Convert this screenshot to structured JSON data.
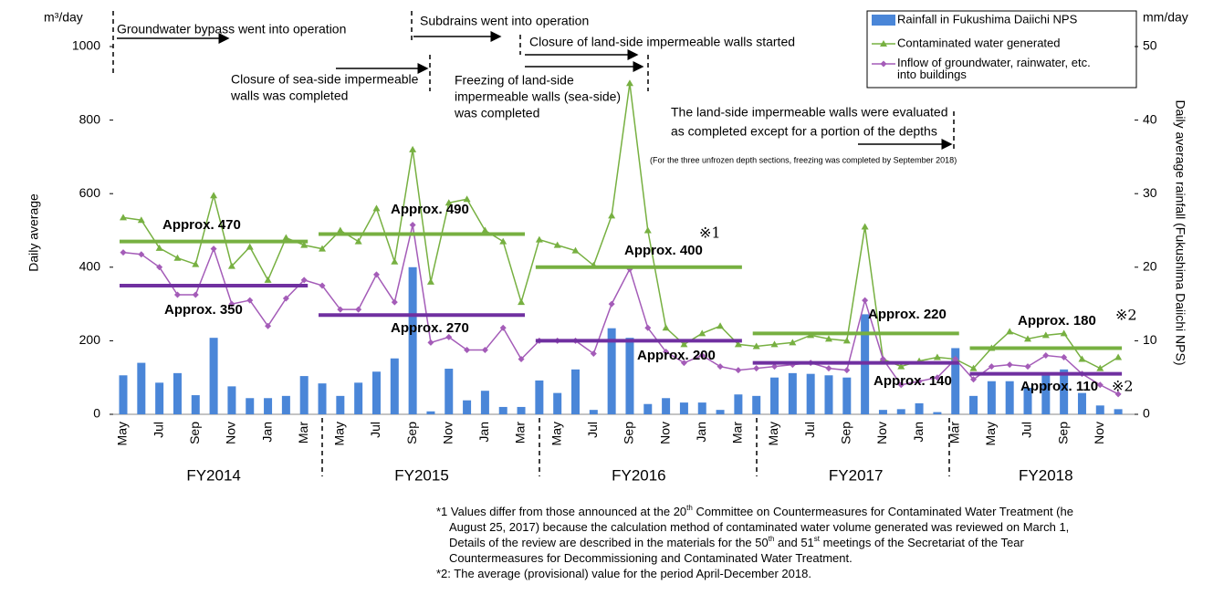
{
  "chart_data": {
    "type": "bar_line",
    "y_unit_label": "m³/day",
    "y_axis_label": "Daily average",
    "y2_unit_label": "mm/day",
    "y2_axis_label": "Daily average rainfall (Fukushima Daiichi NPS)",
    "ylim": [
      0,
      1000
    ],
    "yticks": [
      0,
      200,
      400,
      600,
      800,
      1000
    ],
    "y2lim": [
      0,
      50
    ],
    "y2ticks": [
      0,
      10,
      20,
      30,
      40,
      50
    ],
    "categories": [
      "May",
      null,
      "Jul",
      null,
      "Sep",
      null,
      "Nov",
      null,
      "Jan",
      null,
      "Mar",
      null,
      "May",
      null,
      "Jul",
      null,
      "Sep",
      null,
      "Nov",
      null,
      "Jan",
      null,
      "Mar",
      null,
      "May",
      null,
      "Jul",
      null,
      "Sep",
      null,
      "Nov",
      null,
      "Jan",
      null,
      "Mar",
      null,
      "May",
      null,
      "Jul",
      null,
      "Sep",
      null,
      "Nov",
      null,
      "Jan",
      null,
      "Mar",
      null,
      "May",
      null,
      "Jul",
      null,
      "Sep",
      null,
      "Nov",
      null
    ],
    "fiscal_years": [
      "FY2014",
      "FY2015",
      "FY2016",
      "FY2017",
      "FY2018"
    ],
    "series": [
      {
        "name": "Rainfall in Fukushima Daiichi NPS",
        "kind": "bar",
        "axis": "y2",
        "color": "#4a86d8",
        "values": [
          5.3,
          7.0,
          4.3,
          5.6,
          2.6,
          10.4,
          3.8,
          2.2,
          2.2,
          2.5,
          5.2,
          4.2,
          2.5,
          4.3,
          5.8,
          7.6,
          20,
          0.4,
          6.2,
          1.9,
          3.2,
          1.0,
          1.0,
          4.6,
          2.9,
          6.1,
          0.6,
          11.7,
          10.4,
          1.4,
          2.2,
          1.6,
          1.6,
          0.6,
          2.7,
          2.5,
          5.0,
          5.6,
          5.5,
          5.3,
          5.0,
          13.6,
          0.6,
          0.7,
          1.5,
          0.3,
          9.0,
          2.5,
          4.5,
          4.5,
          3.6,
          5.5,
          6.1,
          2.9,
          1.2,
          0.7
        ]
      },
      {
        "name": "Contaminated water generated",
        "kind": "line",
        "marker": "triangle",
        "color": "#77b041",
        "values": [
          535,
          528,
          452,
          425,
          408,
          595,
          403,
          455,
          365,
          480,
          460,
          450,
          500,
          470,
          560,
          415,
          720,
          360,
          575,
          585,
          500,
          470,
          305,
          475,
          460,
          445,
          405,
          540,
          900,
          500,
          235,
          190,
          220,
          240,
          190,
          185,
          190,
          195,
          215,
          205,
          200,
          510,
          150,
          130,
          145,
          155,
          150,
          125,
          180,
          225,
          205,
          215,
          220,
          150,
          125,
          155
        ]
      },
      {
        "name": "Inflow of groundwater, rainwater, etc. into buildings",
        "kind": "line",
        "marker": "diamond",
        "color": "#a45cb8",
        "values": [
          440,
          435,
          400,
          325,
          325,
          450,
          300,
          310,
          240,
          315,
          365,
          350,
          285,
          285,
          380,
          305,
          515,
          195,
          210,
          175,
          175,
          235,
          150,
          200,
          200,
          200,
          165,
          300,
          395,
          235,
          170,
          140,
          160,
          130,
          120,
          125,
          130,
          135,
          140,
          125,
          120,
          310,
          150,
          80,
          90,
          100,
          150,
          95,
          130,
          135,
          130,
          160,
          155,
          110,
          80,
          55
        ]
      }
    ],
    "period_averages": [
      {
        "color": "#77b041",
        "values": [
          470,
          490,
          400,
          220,
          180
        ],
        "value_labels": [
          "Approx. 470",
          "Approx. 490",
          "Approx. 400",
          "Approx. 220",
          "Approx. 180"
        ]
      },
      {
        "color": "#7030a0",
        "values": [
          350,
          270,
          200,
          140,
          110
        ],
        "value_labels": [
          "Approx. 350",
          "Approx. 270",
          "Approx. 200",
          "Approx. 140",
          "Approx. 110"
        ]
      }
    ],
    "notes": [
      "※1",
      "※2",
      "※2"
    ],
    "annotations": [
      {
        "lines": [
          "Groundwater bypass went into operation"
        ]
      },
      {
        "lines": [
          "Subdrains went into operation"
        ]
      },
      {
        "lines": [
          "Closure of land-side impermeable walls started"
        ]
      },
      {
        "lines": [
          "Closure of sea-side impermeable",
          "walls was completed"
        ]
      },
      {
        "lines": [
          "Freezing of land-side",
          "impermeable walls (sea-side)",
          "was completed"
        ]
      },
      {
        "lines": [
          "The land-side impermeable walls were evaluated",
          "as completed except for a portion of the depths"
        ]
      },
      {
        "lines": [
          "(For the three unfrozen depth sections, freezing was completed by September 2018)"
        ]
      }
    ],
    "footnotes": [
      [
        {
          "text": "*1 Values differ from those announced at the 20"
        },
        {
          "sup": "th"
        },
        {
          "text": " Committee on Countermeasures for Contaminated Water Treatment (he"
        }
      ],
      [
        {
          "text": "August 25, 2017) because the calculation method of contaminated water volume generated was reviewed on March 1,"
        }
      ],
      [
        {
          "text": "Details of the review are described in the materials for the 50"
        },
        {
          "sup": "th"
        },
        {
          "text": " and 51"
        },
        {
          "sup": "st"
        },
        {
          "text": " meetings of the Secretariat of the Tear"
        }
      ],
      [
        {
          "text": "Countermeasures for Decommissioning and Contaminated Water Treatment."
        }
      ],
      [
        {
          "text": "*2: The average (provisional) value for the period April-December 2018."
        }
      ]
    ]
  }
}
